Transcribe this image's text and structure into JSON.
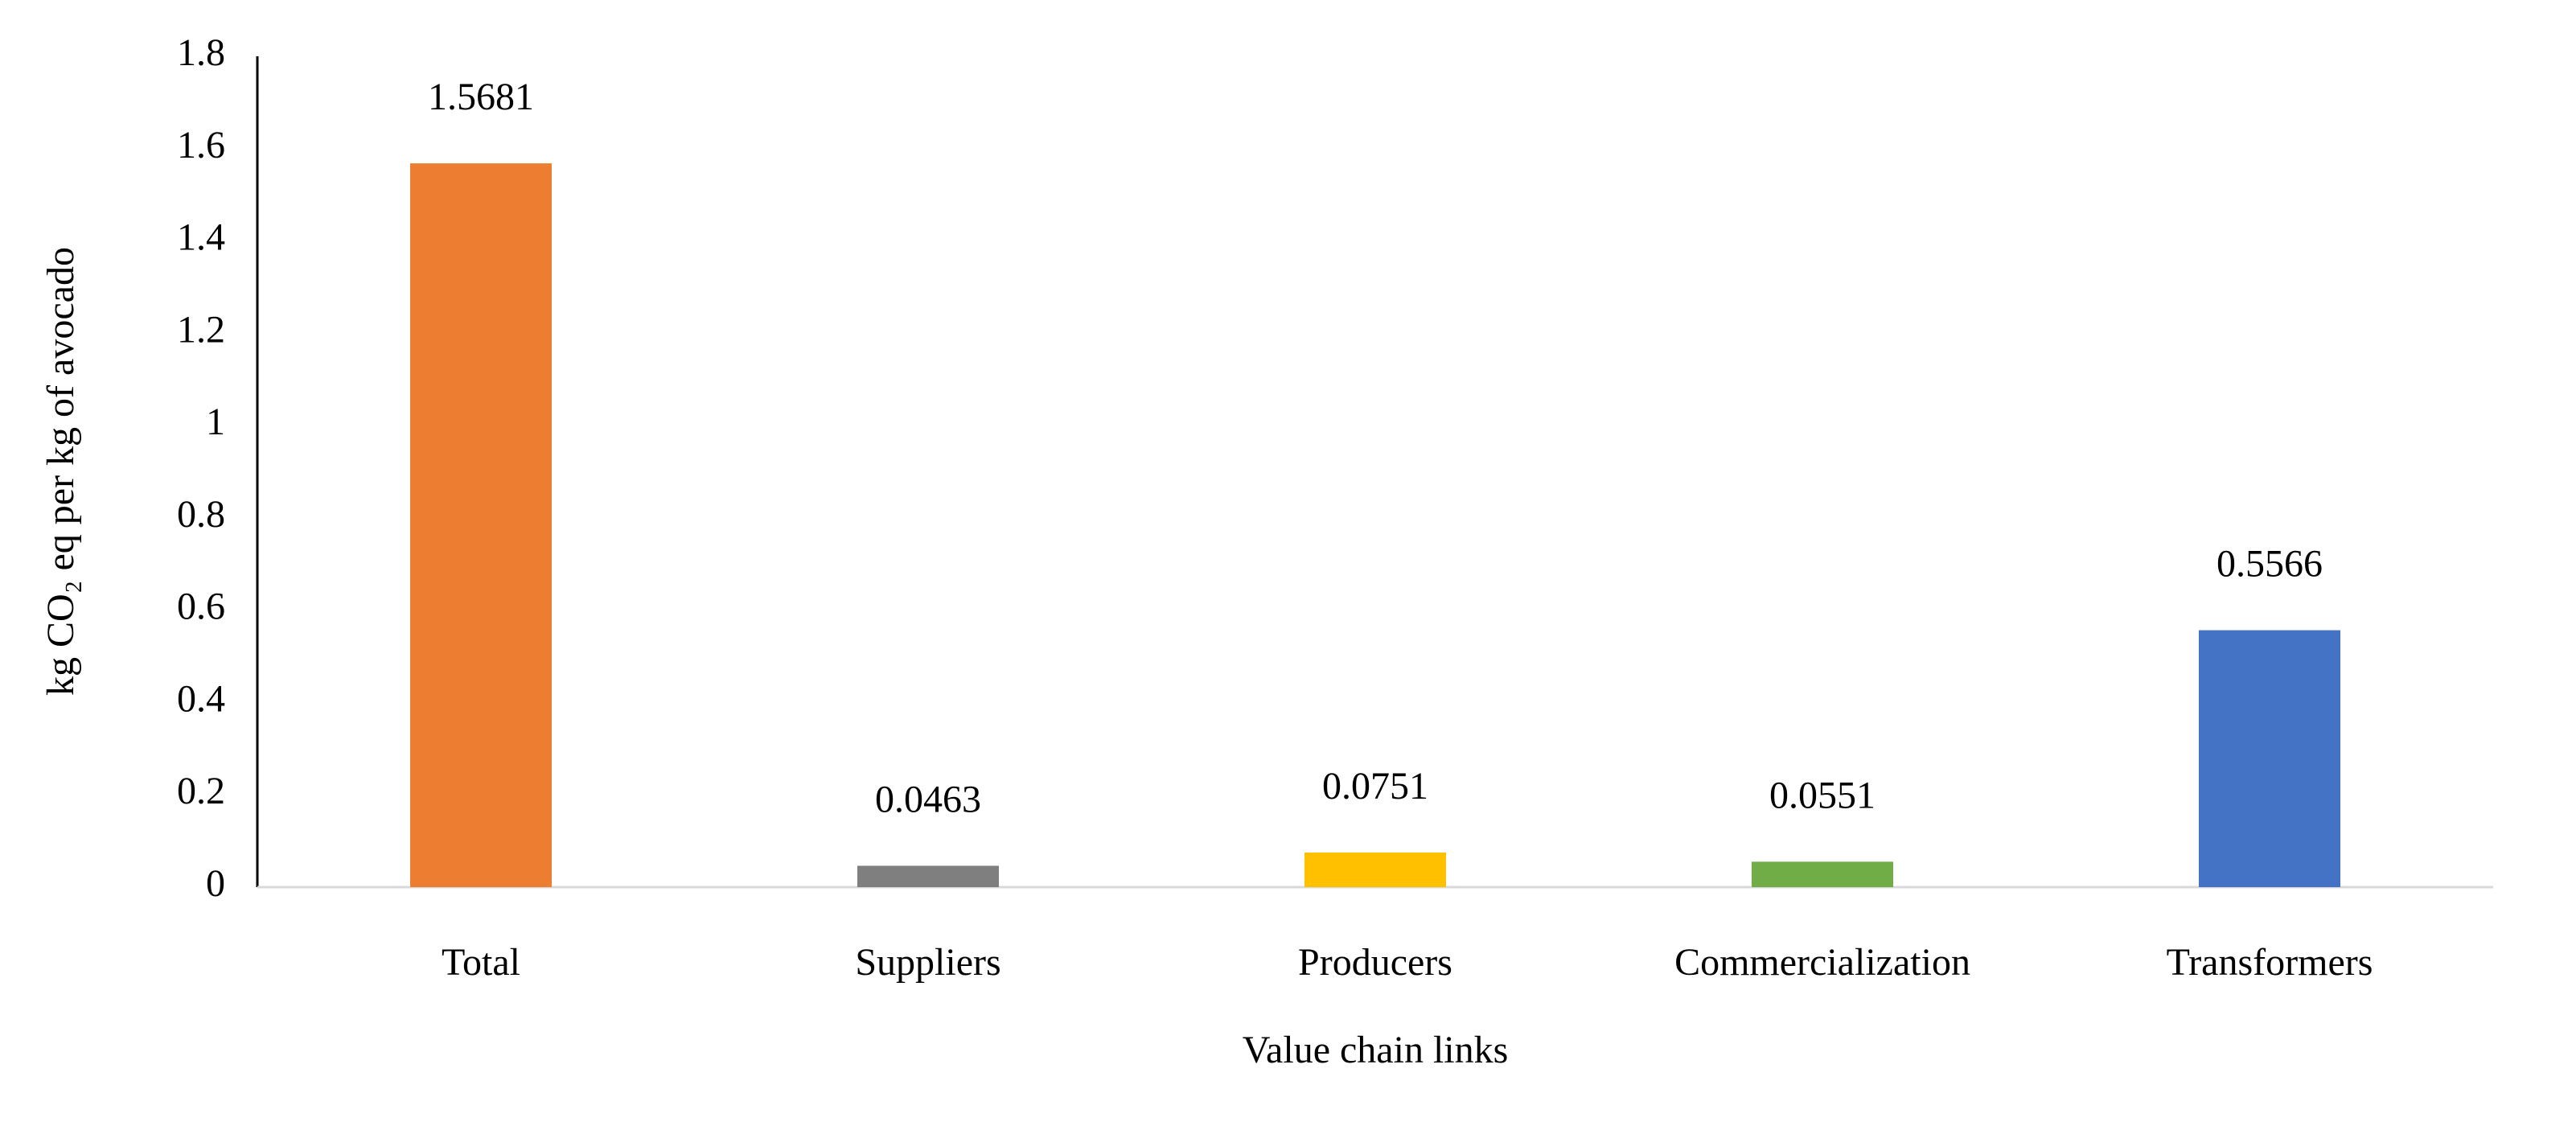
{
  "chart_data": {
    "type": "bar",
    "x_label": "Value chain links",
    "y_label": "kg CO₂ eq per kg of avocado",
    "categories": [
      "Total",
      "Suppliers",
      "Producers",
      "Commercialization",
      "Transformers"
    ],
    "values": [
      1.5681,
      0.0463,
      0.0751,
      0.0551,
      0.5566
    ],
    "colors": [
      "#ed7d31",
      "#7f7f7f",
      "#ffc000",
      "#70ad47",
      "#4472c4"
    ],
    "ylim": [
      0,
      1.8
    ],
    "yticks": [
      0,
      0.2,
      0.4,
      0.6,
      0.8,
      1,
      1.2,
      1.4,
      1.6,
      1.8
    ],
    "grid": false
  }
}
